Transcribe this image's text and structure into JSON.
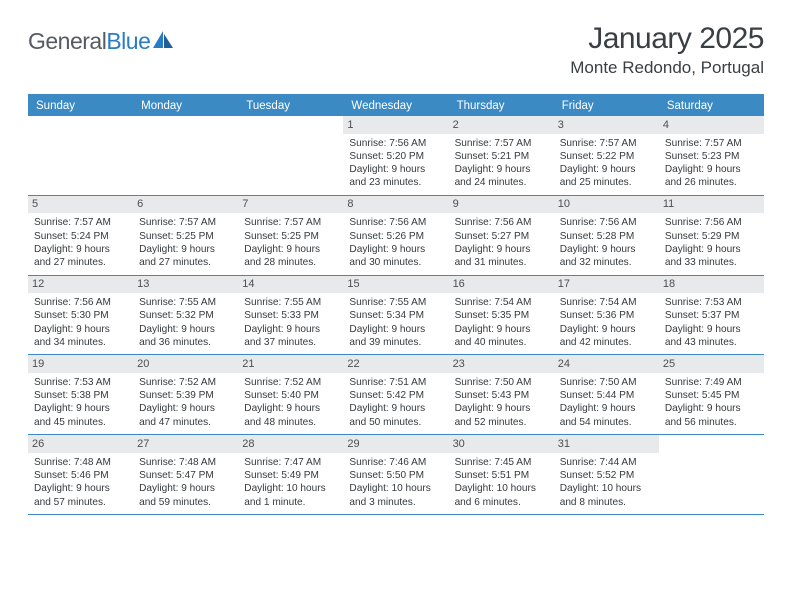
{
  "logo": {
    "word1": "General",
    "word2": "Blue"
  },
  "header": {
    "title": "January 2025",
    "subtitle": "Monte Redondo, Portugal"
  },
  "colors": {
    "header_bar": "#3b8ac4",
    "row_divider": "#3b8ac4",
    "daynum_bg": "#e8e9ea",
    "text": "#2f3438",
    "logo_gray": "#555b60",
    "logo_blue": "#2a7cc3"
  },
  "daysOfWeek": [
    "Sunday",
    "Monday",
    "Tuesday",
    "Wednesday",
    "Thursday",
    "Friday",
    "Saturday"
  ],
  "weeks": [
    [
      {
        "n": "",
        "lines": [
          "",
          "",
          "",
          ""
        ]
      },
      {
        "n": "",
        "lines": [
          "",
          "",
          "",
          ""
        ]
      },
      {
        "n": "",
        "lines": [
          "",
          "",
          "",
          ""
        ]
      },
      {
        "n": "1",
        "lines": [
          "Sunrise: 7:56 AM",
          "Sunset: 5:20 PM",
          "Daylight: 9 hours",
          "and 23 minutes."
        ]
      },
      {
        "n": "2",
        "lines": [
          "Sunrise: 7:57 AM",
          "Sunset: 5:21 PM",
          "Daylight: 9 hours",
          "and 24 minutes."
        ]
      },
      {
        "n": "3",
        "lines": [
          "Sunrise: 7:57 AM",
          "Sunset: 5:22 PM",
          "Daylight: 9 hours",
          "and 25 minutes."
        ]
      },
      {
        "n": "4",
        "lines": [
          "Sunrise: 7:57 AM",
          "Sunset: 5:23 PM",
          "Daylight: 9 hours",
          "and 26 minutes."
        ]
      }
    ],
    [
      {
        "n": "5",
        "lines": [
          "Sunrise: 7:57 AM",
          "Sunset: 5:24 PM",
          "Daylight: 9 hours",
          "and 27 minutes."
        ]
      },
      {
        "n": "6",
        "lines": [
          "Sunrise: 7:57 AM",
          "Sunset: 5:25 PM",
          "Daylight: 9 hours",
          "and 27 minutes."
        ]
      },
      {
        "n": "7",
        "lines": [
          "Sunrise: 7:57 AM",
          "Sunset: 5:25 PM",
          "Daylight: 9 hours",
          "and 28 minutes."
        ]
      },
      {
        "n": "8",
        "lines": [
          "Sunrise: 7:56 AM",
          "Sunset: 5:26 PM",
          "Daylight: 9 hours",
          "and 30 minutes."
        ]
      },
      {
        "n": "9",
        "lines": [
          "Sunrise: 7:56 AM",
          "Sunset: 5:27 PM",
          "Daylight: 9 hours",
          "and 31 minutes."
        ]
      },
      {
        "n": "10",
        "lines": [
          "Sunrise: 7:56 AM",
          "Sunset: 5:28 PM",
          "Daylight: 9 hours",
          "and 32 minutes."
        ]
      },
      {
        "n": "11",
        "lines": [
          "Sunrise: 7:56 AM",
          "Sunset: 5:29 PM",
          "Daylight: 9 hours",
          "and 33 minutes."
        ]
      }
    ],
    [
      {
        "n": "12",
        "lines": [
          "Sunrise: 7:56 AM",
          "Sunset: 5:30 PM",
          "Daylight: 9 hours",
          "and 34 minutes."
        ]
      },
      {
        "n": "13",
        "lines": [
          "Sunrise: 7:55 AM",
          "Sunset: 5:32 PM",
          "Daylight: 9 hours",
          "and 36 minutes."
        ]
      },
      {
        "n": "14",
        "lines": [
          "Sunrise: 7:55 AM",
          "Sunset: 5:33 PM",
          "Daylight: 9 hours",
          "and 37 minutes."
        ]
      },
      {
        "n": "15",
        "lines": [
          "Sunrise: 7:55 AM",
          "Sunset: 5:34 PM",
          "Daylight: 9 hours",
          "and 39 minutes."
        ]
      },
      {
        "n": "16",
        "lines": [
          "Sunrise: 7:54 AM",
          "Sunset: 5:35 PM",
          "Daylight: 9 hours",
          "and 40 minutes."
        ]
      },
      {
        "n": "17",
        "lines": [
          "Sunrise: 7:54 AM",
          "Sunset: 5:36 PM",
          "Daylight: 9 hours",
          "and 42 minutes."
        ]
      },
      {
        "n": "18",
        "lines": [
          "Sunrise: 7:53 AM",
          "Sunset: 5:37 PM",
          "Daylight: 9 hours",
          "and 43 minutes."
        ]
      }
    ],
    [
      {
        "n": "19",
        "lines": [
          "Sunrise: 7:53 AM",
          "Sunset: 5:38 PM",
          "Daylight: 9 hours",
          "and 45 minutes."
        ]
      },
      {
        "n": "20",
        "lines": [
          "Sunrise: 7:52 AM",
          "Sunset: 5:39 PM",
          "Daylight: 9 hours",
          "and 47 minutes."
        ]
      },
      {
        "n": "21",
        "lines": [
          "Sunrise: 7:52 AM",
          "Sunset: 5:40 PM",
          "Daylight: 9 hours",
          "and 48 minutes."
        ]
      },
      {
        "n": "22",
        "lines": [
          "Sunrise: 7:51 AM",
          "Sunset: 5:42 PM",
          "Daylight: 9 hours",
          "and 50 minutes."
        ]
      },
      {
        "n": "23",
        "lines": [
          "Sunrise: 7:50 AM",
          "Sunset: 5:43 PM",
          "Daylight: 9 hours",
          "and 52 minutes."
        ]
      },
      {
        "n": "24",
        "lines": [
          "Sunrise: 7:50 AM",
          "Sunset: 5:44 PM",
          "Daylight: 9 hours",
          "and 54 minutes."
        ]
      },
      {
        "n": "25",
        "lines": [
          "Sunrise: 7:49 AM",
          "Sunset: 5:45 PM",
          "Daylight: 9 hours",
          "and 56 minutes."
        ]
      }
    ],
    [
      {
        "n": "26",
        "lines": [
          "Sunrise: 7:48 AM",
          "Sunset: 5:46 PM",
          "Daylight: 9 hours",
          "and 57 minutes."
        ]
      },
      {
        "n": "27",
        "lines": [
          "Sunrise: 7:48 AM",
          "Sunset: 5:47 PM",
          "Daylight: 9 hours",
          "and 59 minutes."
        ]
      },
      {
        "n": "28",
        "lines": [
          "Sunrise: 7:47 AM",
          "Sunset: 5:49 PM",
          "Daylight: 10 hours",
          "and 1 minute."
        ]
      },
      {
        "n": "29",
        "lines": [
          "Sunrise: 7:46 AM",
          "Sunset: 5:50 PM",
          "Daylight: 10 hours",
          "and 3 minutes."
        ]
      },
      {
        "n": "30",
        "lines": [
          "Sunrise: 7:45 AM",
          "Sunset: 5:51 PM",
          "Daylight: 10 hours",
          "and 6 minutes."
        ]
      },
      {
        "n": "31",
        "lines": [
          "Sunrise: 7:44 AM",
          "Sunset: 5:52 PM",
          "Daylight: 10 hours",
          "and 8 minutes."
        ]
      },
      {
        "n": "",
        "lines": [
          "",
          "",
          "",
          ""
        ]
      }
    ]
  ]
}
